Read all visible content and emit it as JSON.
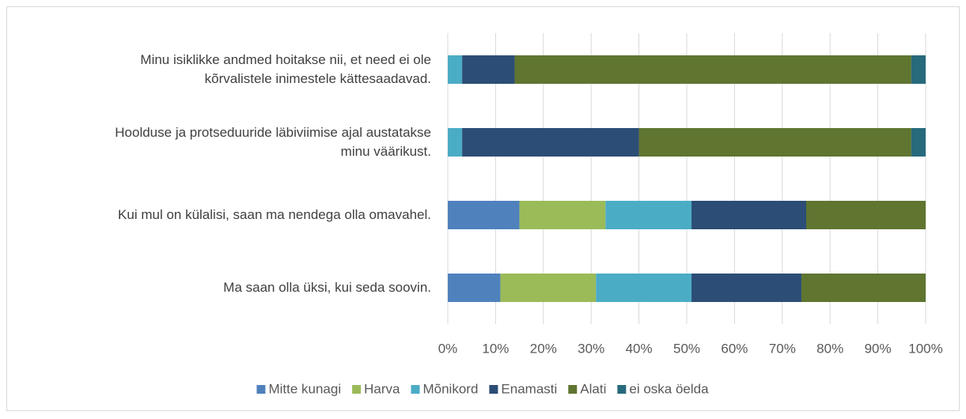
{
  "chart_data": {
    "type": "stacked_barh",
    "categories": [
      "Minu isiklikke andmed hoitakse nii, et need ei ole\nkõrvalistele inimestele kättesaadavad.",
      "Hoolduse ja protseduuride läbiviimise ajal austatakse\nminu väärikust.",
      "Kui mul on külalisi, saan ma nendega olla omavahel.",
      "Ma saan olla üksi, kui seda soovin."
    ],
    "series": [
      {
        "name": "Mitte kunagi",
        "color": "#4f81bd",
        "values": [
          0,
          0,
          15,
          11
        ]
      },
      {
        "name": "Harva",
        "color": "#9bbb59",
        "values": [
          0,
          0,
          18,
          20
        ]
      },
      {
        "name": "Mõnikord",
        "color": "#4bacc6",
        "values": [
          3,
          3,
          18,
          20
        ]
      },
      {
        "name": "Enamasti",
        "color": "#2c4d75",
        "values": [
          11,
          37,
          24,
          23
        ]
      },
      {
        "name": "Alati",
        "color": "#5f7530",
        "values": [
          83,
          57,
          25,
          26
        ]
      },
      {
        "name": "ei oska öelda",
        "color": "#276a7c",
        "values": [
          3,
          3,
          0,
          0
        ]
      }
    ],
    "xlim": [
      0,
      100
    ],
    "xticks": [
      {
        "value": 0,
        "label": "0%"
      },
      {
        "value": 10,
        "label": "10%"
      },
      {
        "value": 20,
        "label": "20%"
      },
      {
        "value": 30,
        "label": "30%"
      },
      {
        "value": 40,
        "label": "40%"
      },
      {
        "value": 50,
        "label": "50%"
      },
      {
        "value": 60,
        "label": "60%"
      },
      {
        "value": 70,
        "label": "70%"
      },
      {
        "value": 80,
        "label": "80%"
      },
      {
        "value": 90,
        "label": "90%"
      },
      {
        "value": 100,
        "label": "100%"
      }
    ],
    "grid": true,
    "legend": "bottom"
  }
}
